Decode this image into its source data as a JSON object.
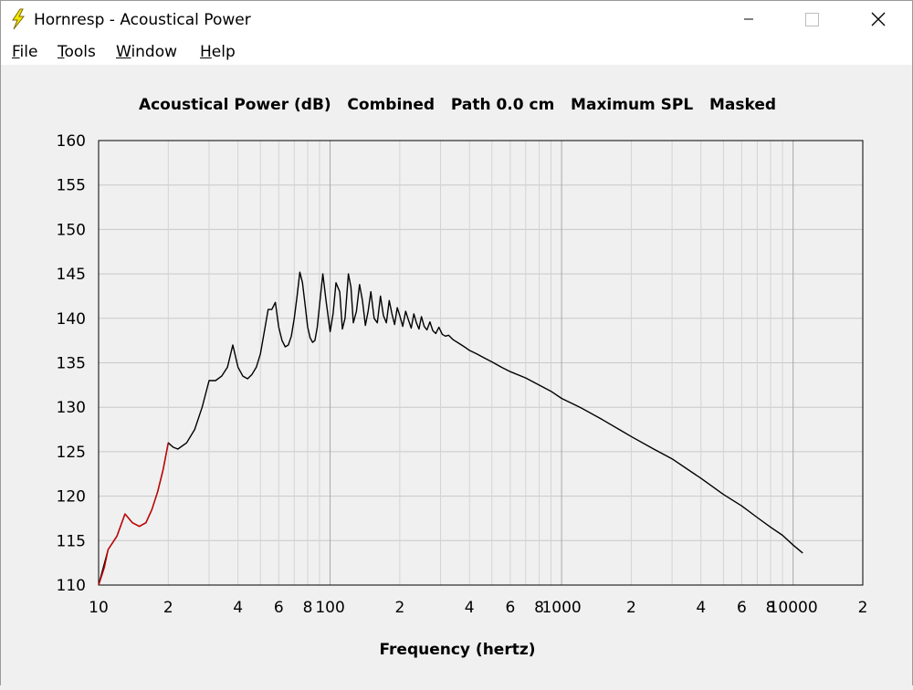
{
  "window": {
    "title": "Hornresp - Acoustical Power",
    "controls": {
      "minimize_glyph": "—",
      "maximize_glyph": "☐",
      "close_glyph": "✕"
    }
  },
  "menu": [
    {
      "id": "file",
      "accel": "F",
      "rest": "ile"
    },
    {
      "id": "tools",
      "accel": "T",
      "rest": "ools"
    },
    {
      "id": "window",
      "accel": "W",
      "rest": "indow"
    },
    {
      "id": "help",
      "accel": "H",
      "rest": "elp"
    }
  ],
  "chart_data": {
    "type": "line",
    "title": "Acoustical Power (dB)   Combined   Path 0.0 cm   Maximum SPL   Masked",
    "xlabel": "Frequency (hertz)",
    "ylabel": "",
    "x_scale": "log",
    "xlim": [
      10,
      20000
    ],
    "ylim": [
      110,
      160
    ],
    "y_ticks": [
      110,
      115,
      120,
      125,
      130,
      135,
      140,
      145,
      150,
      155,
      160
    ],
    "x_tick_labels": [
      {
        "x": 10,
        "label": "10"
      },
      {
        "x": 20,
        "label": "2"
      },
      {
        "x": 40,
        "label": "4"
      },
      {
        "x": 60,
        "label": "6"
      },
      {
        "x": 80,
        "label": "8"
      },
      {
        "x": 100,
        "label": "100"
      },
      {
        "x": 200,
        "label": "2"
      },
      {
        "x": 400,
        "label": "4"
      },
      {
        "x": 600,
        "label": "6"
      },
      {
        "x": 800,
        "label": "8"
      },
      {
        "x": 1000,
        "label": "1000"
      },
      {
        "x": 2000,
        "label": "2"
      },
      {
        "x": 4000,
        "label": "4"
      },
      {
        "x": 6000,
        "label": "6"
      },
      {
        "x": 8000,
        "label": "8"
      },
      {
        "x": 10000,
        "label": "10000"
      },
      {
        "x": 20000,
        "label": "2"
      }
    ],
    "grid": true,
    "series": [
      {
        "color": "#000000",
        "x": [
          10,
          11,
          12,
          13,
          14,
          15,
          16,
          17,
          18,
          19,
          20,
          21,
          22,
          24,
          26,
          28,
          30,
          32,
          34,
          36,
          38,
          40,
          42,
          44,
          46,
          48,
          50,
          52,
          54,
          56,
          58,
          60,
          62,
          64,
          66,
          68,
          70,
          72,
          74,
          76,
          78,
          80,
          82,
          84,
          86,
          88,
          90,
          93,
          96,
          100,
          103,
          106,
          110,
          113,
          116,
          120,
          123,
          126,
          130,
          134,
          138,
          142,
          146,
          150,
          155,
          160,
          165,
          170,
          175,
          180,
          185,
          190,
          195,
          200,
          206,
          212,
          218,
          224,
          230,
          236,
          242,
          248,
          255,
          262,
          270,
          278,
          286,
          295,
          305,
          315,
          325,
          340,
          360,
          380,
          400,
          430,
          460,
          500,
          550,
          600,
          700,
          800,
          900,
          1000,
          1200,
          1500,
          1800,
          2000,
          2500,
          3000,
          4000,
          5000,
          6000,
          7000,
          8000,
          9000,
          10000,
          11000
        ],
        "y": [
          110,
          114,
          115.5,
          118,
          117,
          116.6,
          117,
          118.5,
          120.5,
          123,
          126,
          125.5,
          125.3,
          126,
          127.5,
          130,
          133,
          133,
          133.5,
          134.5,
          137,
          134.5,
          133.5,
          133.2,
          133.7,
          134.5,
          136,
          138.5,
          141,
          141,
          141.8,
          139,
          137.5,
          136.8,
          137,
          138,
          140,
          142.5,
          145.2,
          144,
          141.5,
          139,
          137.8,
          137.3,
          137.5,
          139,
          141.5,
          145,
          142,
          138.5,
          140.5,
          144,
          143,
          138.8,
          140,
          145,
          143.5,
          139.5,
          140.8,
          143.8,
          142,
          139.2,
          140.8,
          143,
          140,
          139.5,
          142.5,
          140.3,
          139.5,
          142,
          140.5,
          139.3,
          141.2,
          140.3,
          139.1,
          140.8,
          139.8,
          138.9,
          140.5,
          139.5,
          138.8,
          140.2,
          139.1,
          138.7,
          139.6,
          138.6,
          138.3,
          139,
          138.2,
          138,
          138.1,
          137.6,
          137.2,
          136.8,
          136.4,
          136,
          135.6,
          135.1,
          134.5,
          134,
          133.3,
          132.5,
          131.8,
          131,
          130,
          128.6,
          127.4,
          126.7,
          125.3,
          124.2,
          122,
          120.2,
          118.9,
          117.6,
          116.5,
          115.6,
          114.5,
          113.6
        ]
      },
      {
        "color": "#cc0000",
        "x": [
          10,
          10.3,
          10.6,
          11,
          12,
          13,
          14,
          15,
          16,
          17,
          18,
          19,
          20
        ],
        "y": [
          110,
          111,
          112,
          114,
          115.5,
          118,
          117,
          116.6,
          117,
          118.5,
          120.5,
          123,
          126
        ]
      }
    ]
  }
}
